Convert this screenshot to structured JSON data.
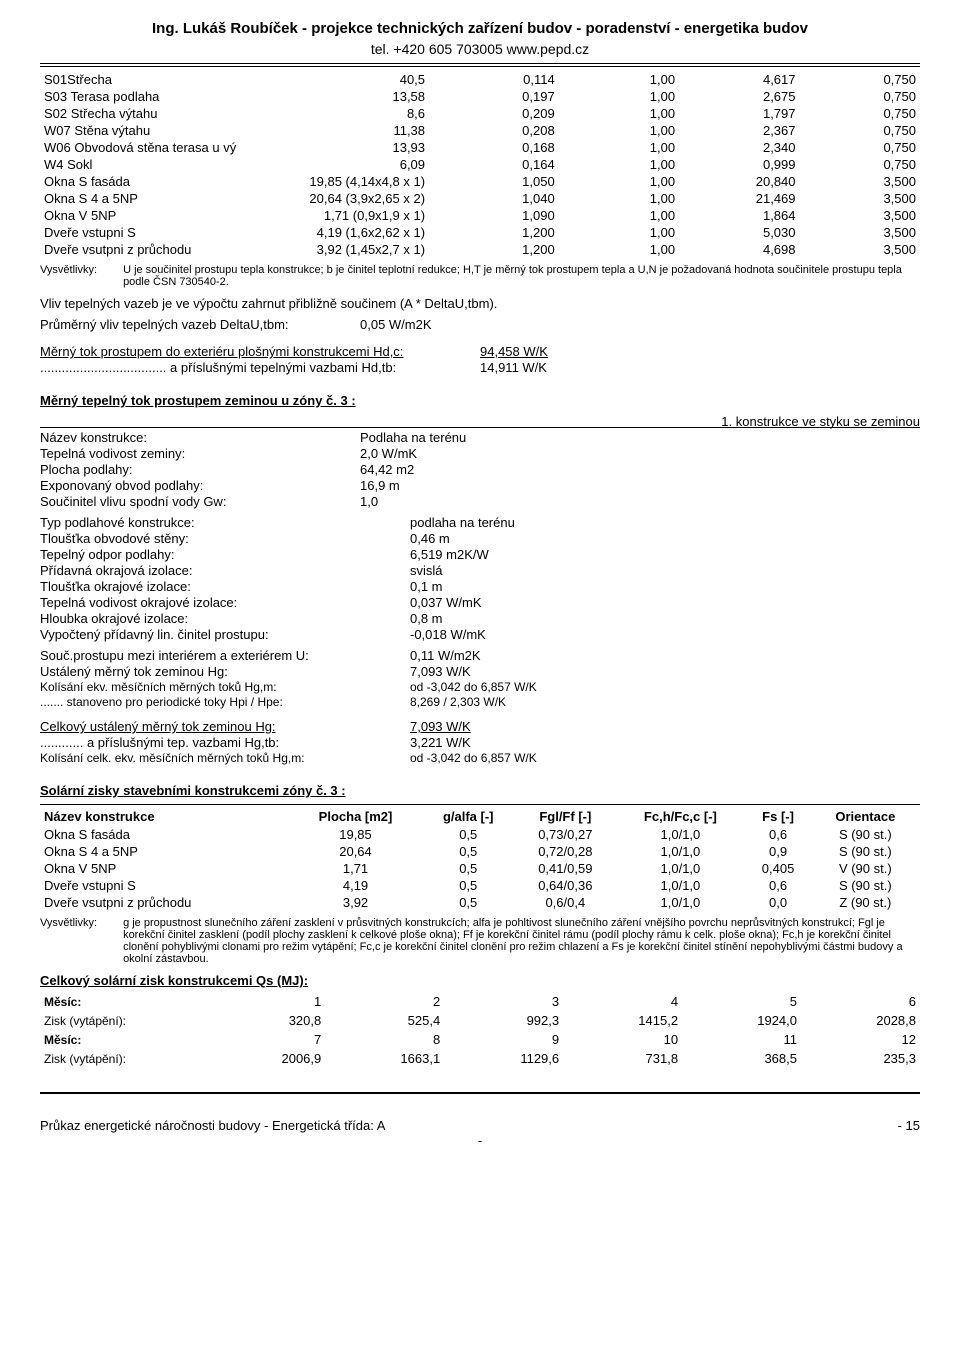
{
  "header": {
    "line1": "Ing. Lukáš Roubíček  -  projekce technických zařízení budov -  poradenství  -  energetika budov",
    "line2": "tel. +420 605 703005   www.pepd.cz"
  },
  "table1": {
    "rows": [
      {
        "name": "S01Střecha",
        "c1": "40,5",
        "c2": "0,114",
        "c3": "1,00",
        "c4": "4,617",
        "c5": "0,750"
      },
      {
        "name": "S03 Terasa podlaha",
        "c1": "13,58",
        "c2": "0,197",
        "c3": "1,00",
        "c4": "2,675",
        "c5": "0,750"
      },
      {
        "name": "S02 Střecha výtahu",
        "c1": "8,6",
        "c2": "0,209",
        "c3": "1,00",
        "c4": "1,797",
        "c5": "0,750"
      },
      {
        "name": "W07 Stěna výtahu",
        "c1": "11,38",
        "c2": "0,208",
        "c3": "1,00",
        "c4": "2,367",
        "c5": "0,750"
      },
      {
        "name": "W06 Obvodová stěna terasa u vý",
        "c1": "13,93",
        "c2": "0,168",
        "c3": "1,00",
        "c4": "2,340",
        "c5": "0,750"
      },
      {
        "name": "W4 Sokl",
        "c1": "6,09",
        "c2": "0,164",
        "c3": "1,00",
        "c4": "0,999",
        "c5": "0,750"
      },
      {
        "name": "Okna S fasáda",
        "c1": "19,85 (4,14x4,8 x 1)",
        "c2": "1,050",
        "c3": "1,00",
        "c4": "20,840",
        "c5": "3,500"
      },
      {
        "name": "Okna S 4 a 5NP",
        "c1": "20,64 (3,9x2,65 x 2)",
        "c2": "1,040",
        "c3": "1,00",
        "c4": "21,469",
        "c5": "3,500"
      },
      {
        "name": "Okna V 5NP",
        "c1": "1,71 (0,9x1,9 x 1)",
        "c2": "1,090",
        "c3": "1,00",
        "c4": "1,864",
        "c5": "3,500"
      },
      {
        "name": "Dveře vstupni S",
        "c1": "4,19 (1,6x2,62 x 1)",
        "c2": "1,200",
        "c3": "1,00",
        "c4": "5,030",
        "c5": "3,500"
      },
      {
        "name": "Dveře vsutpni z průchodu",
        "c1": "3,92 (1,45x2,7 x 1)",
        "c2": "1,200",
        "c3": "1,00",
        "c4": "4,698",
        "c5": "3,500"
      }
    ]
  },
  "vys1": {
    "label": "Vysvětlivky:",
    "text": "U je součinitel prostupu tepla konstrukce; b je činitel teplotní redukce; H,T je měrný tok prostupem tepla a U,N je požadovaná hodnota součinitele prostupu tepla podle ČSN 730540-2."
  },
  "para1": "Vliv tepelných vazeb je ve výpočtu zahrnut přibližně součinem (A * DeltaU,tbm).",
  "para2_k": "Průměrný vliv tepelných vazeb DeltaU,tbm:",
  "para2_v": "0,05 W/m2K",
  "hd_c_k": "Měrný tok prostupem do exteriéru plošnými konstrukcemi Hd,c:",
  "hd_c_v": "94,458 W/K",
  "hd_tb_k": "................................... a příslušnými tepelnými vazbami Hd,tb:",
  "hd_tb_v": "14,911 W/K",
  "sec2_title": "Měrný tepelný tok prostupem zeminou u zóny č. 3 :",
  "sec2_link": "1. konstrukce ve styku se zeminou",
  "sec2_rows": [
    {
      "k": "Název konstrukce:",
      "v": "Podlaha na terénu"
    },
    {
      "k": "Tepelná vodivost zeminy:",
      "v": "2,0 W/mK"
    },
    {
      "k": "Plocha podlahy:",
      "v": "64,42 m2"
    },
    {
      "k": "Exponovaný obvod podlahy:",
      "v": "16,9 m"
    },
    {
      "k": "Součinitel vlivu spodní vody Gw:",
      "v": "1,0"
    }
  ],
  "sec2_rows2": [
    {
      "k": "Typ podlahové konstrukce:",
      "v": "podlaha na terénu"
    },
    {
      "k": "Tloušťka obvodové stěny:",
      "v": "0,46 m"
    },
    {
      "k": "Tepelný odpor podlahy:",
      "v": "6,519 m2K/W"
    },
    {
      "k": "Přídavná okrajová izolace:",
      "v": "svislá"
    },
    {
      "k": "Tloušťka okrajové izolace:",
      "v": "0,1 m"
    },
    {
      "k": "Tepelná vodivost okrajové izolace:",
      "v": "0,037 W/mK"
    },
    {
      "k": "Hloubka okrajové izolace:",
      "v": "0,8 m"
    },
    {
      "k": "Vypočtený přídavný lin. činitel prostupu:",
      "v": "-0,018 W/mK"
    }
  ],
  "sec2_rows3": [
    {
      "k": "Souč.prostupu mezi interiérem a exteriérem U:",
      "v": "0,11 W/m2K"
    },
    {
      "k": "Ustálený měrný tok zeminou Hg:",
      "v": "7,093 W/K"
    },
    {
      "k": "Kolísání ekv. měsíčních měrných toků Hg,m:",
      "v": "od -3,042 do 6,857 W/K"
    },
    {
      "k": "....... stanoveno pro periodické toky Hpi / Hpe:",
      "v": "8,269 / 2,303 W/K"
    }
  ],
  "sec2_rows4": [
    {
      "k": "Celkový ustálený měrný tok zeminou Hg:",
      "v": "7,093 W/K"
    },
    {
      "k": "............ a příslušnými tep. vazbami Hg,tb:",
      "v": "3,221 W/K"
    },
    {
      "k": "Kolísání celk. ekv. měsíčních měrných toků Hg,m:",
      "v": "od -3,042 do 6,857 W/K"
    }
  ],
  "sec3_title": "Solární zisky stavebními konstrukcemi zóny č. 3 :",
  "sec3_headers": [
    "Název konstrukce",
    "Plocha [m2]",
    "g/alfa [-]",
    "Fgl/Ff [-]",
    "Fc,h/Fc,c [-]",
    "Fs [-]",
    "Orientace"
  ],
  "sec3_rows": [
    {
      "n": "Okna S fasáda",
      "p": "19,85",
      "g": "0,5",
      "f": "0,73/0,27",
      "fc": "1,0/1,0",
      "fs": "0,6",
      "o": "S (90 st.)"
    },
    {
      "n": "Okna S 4 a 5NP",
      "p": "20,64",
      "g": "0,5",
      "f": "0,72/0,28",
      "fc": "1,0/1,0",
      "fs": "0,9",
      "o": "S (90 st.)"
    },
    {
      "n": "Okna V 5NP",
      "p": "1,71",
      "g": "0,5",
      "f": "0,41/0,59",
      "fc": "1,0/1,0",
      "fs": "0,405",
      "o": "V (90 st.)"
    },
    {
      "n": "Dveře vstupni S",
      "p": "4,19",
      "g": "0,5",
      "f": "0,64/0,36",
      "fc": "1,0/1,0",
      "fs": "0,6",
      "o": "S (90 st.)"
    },
    {
      "n": "Dveře vsutpni z průchodu",
      "p": "3,92",
      "g": "0,5",
      "f": "0,6/0,4",
      "fc": "1,0/1,0",
      "fs": "0,0",
      "o": "Z (90 st.)"
    }
  ],
  "vys2": {
    "label": "Vysvětlivky:",
    "text": "g je propustnost slunečního záření zasklení v průsvitných konstrukcích; alfa je pohltivost slunečního záření vnějšího povrchu neprůsvitných konstrukcí; Fgl je korekční činitel zasklení (podíl plochy zasklení k celkové ploše okna); Ff je korekční činitel rámu (podíl plochy rámu k celk. ploše okna); Fc,h je korekční činitel clonění pohyblivými clonami pro režim vytápění; Fc,c je korekční činitel clonění pro režim chlazení a Fs je korekční činitel stínění nepohyblivými částmi budovy a okolní zástavbou."
  },
  "qs_title": "Celkový solární zisk konstrukcemi Qs (MJ):",
  "qs": {
    "m_label": "Měsíc:",
    "z_label": "Zisk (vytápění):",
    "m1": [
      "1",
      "2",
      "3",
      "4",
      "5",
      "6"
    ],
    "z1": [
      "320,8",
      "525,4",
      "992,3",
      "1415,2",
      "1924,0",
      "2028,8"
    ],
    "m2": [
      "7",
      "8",
      "9",
      "10",
      "11",
      "12"
    ],
    "z2": [
      "2006,9",
      "1663,1",
      "1129,6",
      "731,8",
      "368,5",
      "235,3"
    ]
  },
  "footer": {
    "left": "Průkaz energetické náročnosti budovy  - Energetická třída: A",
    "right": "- 15",
    "center": "-"
  }
}
